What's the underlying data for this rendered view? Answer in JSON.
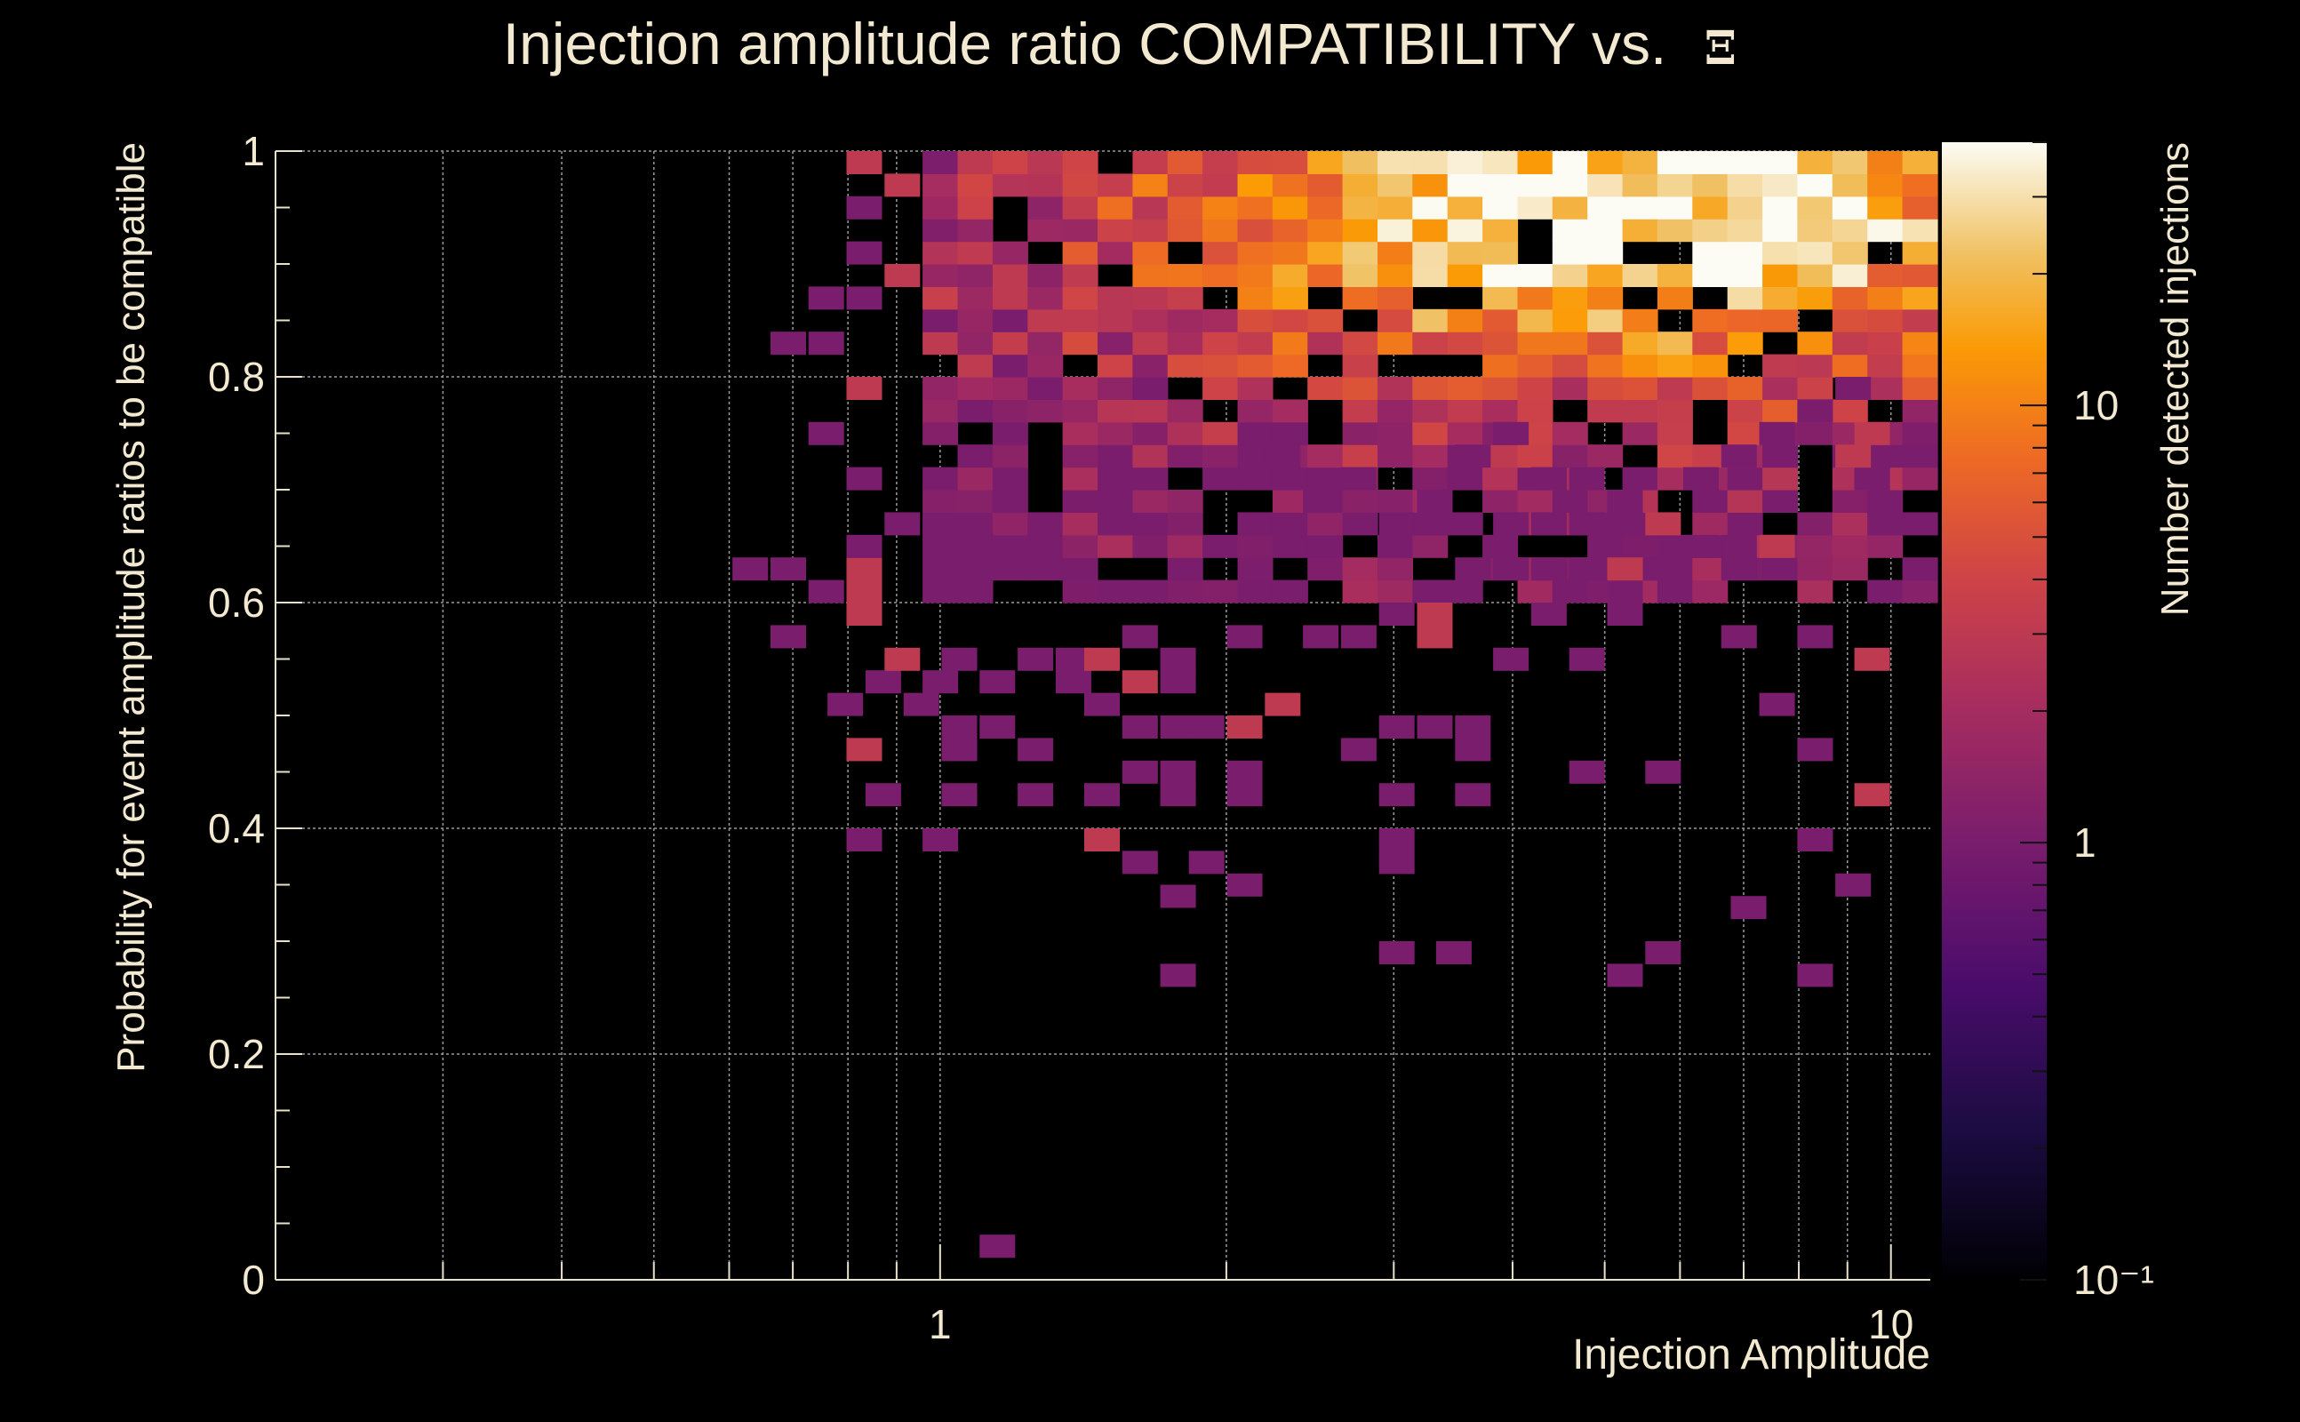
{
  "chart_data": {
    "type": "heatmap",
    "title": "Injection amplitude ratio COMPATIBILITY vs.",
    "title_symbol": "Ξ",
    "xlabel": "Injection Amplitude",
    "ylabel": "Probability for event amplitude ratios to be compatible",
    "zlabel": "Number detected injections",
    "x_scale": "log",
    "xlim": [
      0.2,
      11
    ],
    "ylim": [
      0,
      1
    ],
    "z_scale": "log",
    "zlim": [
      0.1,
      40
    ],
    "x_tick_labels": [
      "1",
      "10"
    ],
    "y_tick_labels": [
      "0",
      "0.2",
      "0.4",
      "0.6",
      "0.8",
      "1"
    ],
    "z_tick_labels": [
      "10",
      "1",
      "10⁻¹"
    ],
    "grid": true,
    "colormap": "inferno",
    "colors": {
      "background": "#000000",
      "text": "#f2e9d0",
      "grid": "#9a9a9a"
    },
    "bins": {
      "x_bin_edges_log10": [
        -0.1263,
        -0.0895,
        -0.0527,
        -0.0158,
        0.0211,
        0.0579,
        0.0947,
        0.1316,
        0.1684,
        0.2053,
        0.2421,
        0.2789,
        0.3158,
        0.3526,
        0.3895,
        0.4263,
        0.4632,
        0.5,
        0.5368,
        0.5737,
        0.6105,
        0.6474,
        0.6842,
        0.7211,
        0.7579,
        0.7947,
        0.8316,
        0.8684,
        0.9053,
        0.9421,
        0.9789,
        1.0158,
        1.0526
      ],
      "y_bin_edges": [
        0.78,
        0.8,
        0.82,
        0.84,
        0.86,
        0.88,
        0.9,
        0.92,
        0.94,
        0.96,
        0.98,
        1.0
      ]
    },
    "cells": [
      {
        "x": 0.06,
        "y": 0.03,
        "z": 1
      },
      {
        "x": 0.25,
        "y": 0.27,
        "z": 1
      },
      {
        "x": 0.25,
        "y": 0.34,
        "z": 1
      },
      {
        "x": 0.54,
        "y": 0.29,
        "z": 1
      },
      {
        "x": 0.72,
        "y": 0.27,
        "z": 1
      },
      {
        "x": 0.76,
        "y": 0.29,
        "z": 1
      },
      {
        "x": 0.85,
        "y": 0.33,
        "z": 1
      },
      {
        "x": 0.48,
        "y": 0.29,
        "z": 1
      },
      {
        "x": 0.96,
        "y": 0.35,
        "z": 1
      },
      {
        "x": 0.92,
        "y": 0.27,
        "z": 1
      },
      {
        "x": -0.08,
        "y": 0.39,
        "z": 1
      },
      {
        "x": 0.0,
        "y": 0.39,
        "z": 1
      },
      {
        "x": 0.17,
        "y": 0.39,
        "z": 3
      },
      {
        "x": 0.21,
        "y": 0.37,
        "z": 1
      },
      {
        "x": 0.28,
        "y": 0.37,
        "z": 1
      },
      {
        "x": 0.32,
        "y": 0.35,
        "z": 1
      },
      {
        "x": 0.48,
        "y": 0.37,
        "z": 1
      },
      {
        "x": 0.48,
        "y": 0.39,
        "z": 1
      },
      {
        "x": 0.92,
        "y": 0.39,
        "z": 1
      },
      {
        "x": -0.06,
        "y": 0.43,
        "z": 1
      },
      {
        "x": 0.02,
        "y": 0.43,
        "z": 1
      },
      {
        "x": 0.1,
        "y": 0.43,
        "z": 1
      },
      {
        "x": 0.17,
        "y": 0.43,
        "z": 1
      },
      {
        "x": 0.25,
        "y": 0.43,
        "z": 1
      },
      {
        "x": 0.32,
        "y": 0.43,
        "z": 1
      },
      {
        "x": 0.32,
        "y": 0.45,
        "z": 1
      },
      {
        "x": 0.48,
        "y": 0.43,
        "z": 1
      },
      {
        "x": 0.56,
        "y": 0.43,
        "z": 1
      },
      {
        "x": 0.68,
        "y": 0.45,
        "z": 1
      },
      {
        "x": 0.76,
        "y": 0.45,
        "z": 1
      },
      {
        "x": 0.98,
        "y": 0.43,
        "z": 3
      },
      {
        "x": -0.08,
        "y": 0.47,
        "z": 3
      },
      {
        "x": 0.02,
        "y": 0.47,
        "z": 1
      },
      {
        "x": 0.02,
        "y": 0.49,
        "z": 1
      },
      {
        "x": 0.06,
        "y": 0.49,
        "z": 1
      },
      {
        "x": 0.1,
        "y": 0.47,
        "z": 1
      },
      {
        "x": 0.21,
        "y": 0.45,
        "z": 1
      },
      {
        "x": 0.25,
        "y": 0.45,
        "z": 1
      },
      {
        "x": 0.21,
        "y": 0.49,
        "z": 1
      },
      {
        "x": 0.25,
        "y": 0.49,
        "z": 1
      },
      {
        "x": 0.28,
        "y": 0.49,
        "z": 1
      },
      {
        "x": 0.32,
        "y": 0.49,
        "z": 3
      },
      {
        "x": 0.44,
        "y": 0.47,
        "z": 1
      },
      {
        "x": 0.48,
        "y": 0.49,
        "z": 1
      },
      {
        "x": 0.52,
        "y": 0.49,
        "z": 1
      },
      {
        "x": 0.56,
        "y": 0.47,
        "z": 1
      },
      {
        "x": 0.56,
        "y": 0.49,
        "z": 1
      },
      {
        "x": 0.92,
        "y": 0.47,
        "z": 1
      },
      {
        "x": -0.1,
        "y": 0.51,
        "z": 1
      },
      {
        "x": -0.06,
        "y": 0.53,
        "z": 1
      },
      {
        "x": -0.02,
        "y": 0.51,
        "z": 1
      },
      {
        "x": 0.06,
        "y": 0.53,
        "z": 1
      },
      {
        "x": 0.14,
        "y": 0.53,
        "z": 1
      },
      {
        "x": 0.17,
        "y": 0.51,
        "z": 1
      },
      {
        "x": 0.21,
        "y": 0.53,
        "z": 3
      },
      {
        "x": 0.25,
        "y": 0.53,
        "z": 1
      },
      {
        "x": 0.36,
        "y": 0.51,
        "z": 3
      },
      {
        "x": 0.88,
        "y": 0.51,
        "z": 1
      },
      {
        "x": -0.04,
        "y": 0.55,
        "z": 3
      },
      {
        "x": 0.0,
        "y": 0.53,
        "z": 1
      },
      {
        "x": 0.02,
        "y": 0.55,
        "z": 1
      },
      {
        "x": 0.1,
        "y": 0.55,
        "z": 1
      },
      {
        "x": 0.14,
        "y": 0.55,
        "z": 1
      },
      {
        "x": 0.17,
        "y": 0.55,
        "z": 3
      },
      {
        "x": 0.21,
        "y": 0.57,
        "z": 1
      },
      {
        "x": 0.25,
        "y": 0.55,
        "z": 1
      },
      {
        "x": 0.32,
        "y": 0.57,
        "z": 1
      },
      {
        "x": 0.4,
        "y": 0.57,
        "z": 1
      },
      {
        "x": 0.44,
        "y": 0.57,
        "z": 1
      },
      {
        "x": 0.52,
        "y": 0.57,
        "z": 3
      },
      {
        "x": 0.6,
        "y": 0.55,
        "z": 1
      },
      {
        "x": 0.68,
        "y": 0.55,
        "z": 1
      },
      {
        "x": 0.84,
        "y": 0.57,
        "z": 1
      },
      {
        "x": 0.92,
        "y": 0.57,
        "z": 1
      },
      {
        "x": 0.98,
        "y": 0.55,
        "z": 3
      },
      {
        "x": -0.16,
        "y": 0.57,
        "z": 1
      },
      {
        "x": -0.12,
        "y": 0.61,
        "z": 1
      },
      {
        "x": -0.08,
        "y": 0.59,
        "z": 3
      },
      {
        "x": -0.08,
        "y": 0.63,
        "z": 3
      },
      {
        "x": -0.16,
        "y": 0.63,
        "z": 1
      },
      {
        "x": -0.2,
        "y": 0.63,
        "z": 1
      },
      {
        "x": -0.08,
        "y": 0.61,
        "z": 3
      },
      {
        "x": 0.48,
        "y": 0.59,
        "z": 1
      },
      {
        "x": 0.52,
        "y": 0.61,
        "z": 1
      },
      {
        "x": 0.52,
        "y": 0.59,
        "z": 3
      },
      {
        "x": 0.64,
        "y": 0.59,
        "z": 1
      },
      {
        "x": 0.72,
        "y": 0.59,
        "z": 1
      },
      {
        "x": 0.72,
        "y": 0.61,
        "z": 1
      },
      {
        "x": 0.84,
        "y": 0.63,
        "z": 1
      },
      {
        "x": 0.56,
        "y": 0.63,
        "z": 1
      },
      {
        "x": 0.6,
        "y": 0.63,
        "z": 1
      },
      {
        "x": 0.64,
        "y": 0.63,
        "z": 1
      },
      {
        "x": 0.68,
        "y": 0.63,
        "z": 1
      },
      {
        "x": 0.72,
        "y": 0.63,
        "z": 3
      },
      {
        "x": 0.76,
        "y": 0.63,
        "z": 1
      },
      {
        "x": 0.8,
        "y": 0.65,
        "z": 1
      },
      {
        "x": 0.84,
        "y": 0.65,
        "z": 1
      },
      {
        "x": 0.88,
        "y": 0.65,
        "z": 3
      },
      {
        "x": -0.08,
        "y": 0.65,
        "z": 1
      },
      {
        "x": -0.04,
        "y": 0.67,
        "z": 1
      },
      {
        "x": -0.08,
        "y": 0.71,
        "z": 1
      },
      {
        "x": -0.12,
        "y": 0.75,
        "z": 1
      },
      {
        "x": -0.08,
        "y": 0.79,
        "z": 3
      },
      {
        "x": -0.12,
        "y": 0.83,
        "z": 1
      },
      {
        "x": -0.16,
        "y": 0.83,
        "z": 1
      },
      {
        "x": -0.08,
        "y": 0.87,
        "z": 1
      },
      {
        "x": -0.12,
        "y": 0.87,
        "z": 1
      },
      {
        "x": -0.08,
        "y": 0.95,
        "z": 1
      },
      {
        "x": -0.08,
        "y": 0.91,
        "z": 1
      },
      {
        "x": -0.08,
        "y": 0.99,
        "z": 3
      },
      {
        "x": -0.04,
        "y": 0.89,
        "z": 3
      },
      {
        "x": -0.04,
        "y": 0.97,
        "z": 3
      },
      {
        "x": 0.98,
        "y": 0.75,
        "z": 3
      },
      {
        "x": 0.98,
        "y": 0.71,
        "z": 1
      },
      {
        "x": 0.96,
        "y": 0.73,
        "z": 3
      },
      {
        "x": 0.88,
        "y": 0.75,
        "z": 1
      },
      {
        "x": 0.84,
        "y": 0.73,
        "z": 1
      },
      {
        "x": 0.8,
        "y": 0.71,
        "z": 1
      },
      {
        "x": 0.76,
        "y": 0.67,
        "z": 3
      },
      {
        "x": 0.72,
        "y": 0.67,
        "z": 1
      },
      {
        "x": 0.72,
        "y": 0.69,
        "z": 1
      },
      {
        "x": 0.68,
        "y": 0.71,
        "z": 1
      },
      {
        "x": 0.64,
        "y": 0.71,
        "z": 1
      },
      {
        "x": 0.6,
        "y": 0.75,
        "z": 1
      },
      {
        "x": 0.56,
        "y": 0.73,
        "z": 1
      },
      {
        "x": 0.52,
        "y": 0.69,
        "z": 1
      },
      {
        "x": 0.48,
        "y": 0.67,
        "z": 1
      },
      {
        "x": 0.44,
        "y": 0.71,
        "z": 1
      },
      {
        "x": 0.6,
        "y": 0.67,
        "z": 1
      },
      {
        "x": 0.64,
        "y": 0.67,
        "z": 1
      },
      {
        "x": 0.68,
        "y": 0.67,
        "z": 1
      },
      {
        "x": 0.4,
        "y": 0.69,
        "z": 1
      },
      {
        "x": 0.36,
        "y": 0.73,
        "z": 1
      },
      {
        "x": 0.92,
        "y": 0.77,
        "z": 1
      },
      {
        "x": 0.96,
        "y": 0.79,
        "z": 1
      }
    ],
    "core_region": {
      "x_log10_range": [
        0.0,
        1.04
      ],
      "y_range": [
        0.6,
        1.0
      ],
      "z_peak": 40,
      "z_peak_location": {
        "x": 0.72,
        "y": 0.94
      }
    }
  }
}
